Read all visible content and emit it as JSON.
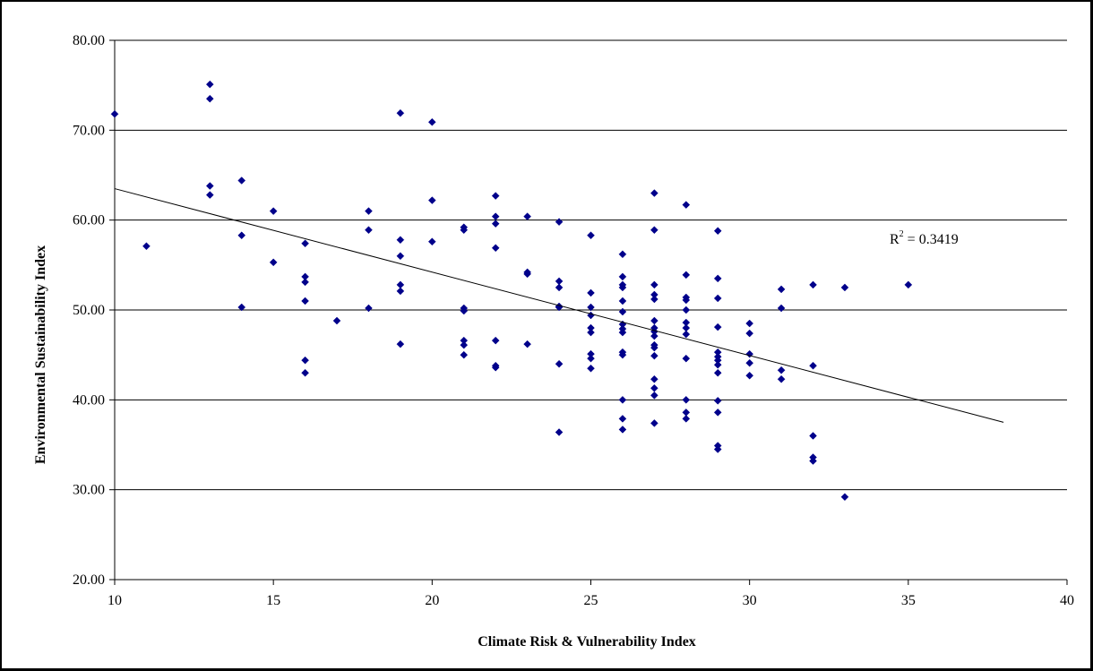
{
  "chart_data": {
    "type": "scatter",
    "xlabel": "Climate Risk & Vulnerability Index",
    "ylabel": "Environmental Sustainability Index",
    "xlim": [
      10,
      40
    ],
    "ylim": [
      20,
      80
    ],
    "x_ticks": [
      "10",
      "15",
      "20",
      "25",
      "30",
      "35",
      "40"
    ],
    "y_ticks": [
      "20.00",
      "30.00",
      "40.00",
      "50.00",
      "60.00",
      "70.00",
      "80.00"
    ],
    "gridlines": "horizontal",
    "marker_color": "#00008B",
    "trendline": {
      "type": "linear",
      "x_range": [
        10,
        38
      ],
      "y_start": 63.5,
      "y_end": 37.5,
      "label": "R",
      "label_exp": "2",
      "label_value": " = 0.3419"
    },
    "points": [
      [
        10,
        71.8
      ],
      [
        11,
        57.1
      ],
      [
        13,
        75.1
      ],
      [
        13,
        73.5
      ],
      [
        13,
        63.8
      ],
      [
        13,
        62.8
      ],
      [
        14,
        64.4
      ],
      [
        14,
        58.3
      ],
      [
        14,
        50.3
      ],
      [
        15,
        61.0
      ],
      [
        15,
        55.3
      ],
      [
        16,
        57.4
      ],
      [
        16,
        53.7
      ],
      [
        16,
        53.1
      ],
      [
        16,
        51.0
      ],
      [
        16,
        44.4
      ],
      [
        16,
        43.0
      ],
      [
        17,
        48.8
      ],
      [
        18,
        61.0
      ],
      [
        18,
        58.9
      ],
      [
        18,
        50.2
      ],
      [
        19,
        71.9
      ],
      [
        19,
        57.8
      ],
      [
        19,
        56.0
      ],
      [
        19,
        52.8
      ],
      [
        19,
        52.1
      ],
      [
        19,
        46.2
      ],
      [
        20,
        70.9
      ],
      [
        20,
        62.2
      ],
      [
        20,
        57.6
      ],
      [
        21,
        59.2
      ],
      [
        21,
        58.9
      ],
      [
        21,
        50.2
      ],
      [
        21,
        49.9
      ],
      [
        21,
        46.6
      ],
      [
        21,
        46.1
      ],
      [
        21,
        45.0
      ],
      [
        22,
        62.7
      ],
      [
        22,
        60.4
      ],
      [
        22,
        59.6
      ],
      [
        22,
        56.9
      ],
      [
        22,
        46.6
      ],
      [
        22,
        43.8
      ],
      [
        22,
        43.6
      ],
      [
        23,
        60.4
      ],
      [
        23,
        54.2
      ],
      [
        23,
        54.0
      ],
      [
        23,
        46.2
      ],
      [
        24,
        59.8
      ],
      [
        24,
        53.2
      ],
      [
        24,
        52.5
      ],
      [
        24,
        50.4
      ],
      [
        24,
        50.3
      ],
      [
        24,
        44.0
      ],
      [
        24,
        36.4
      ],
      [
        25,
        58.3
      ],
      [
        25,
        51.9
      ],
      [
        25,
        50.3
      ],
      [
        25,
        49.4
      ],
      [
        25,
        48.0
      ],
      [
        25,
        47.5
      ],
      [
        25,
        45.1
      ],
      [
        25,
        44.6
      ],
      [
        25,
        43.5
      ],
      [
        26,
        56.2
      ],
      [
        26,
        53.7
      ],
      [
        26,
        52.8
      ],
      [
        26,
        52.5
      ],
      [
        26,
        51.0
      ],
      [
        26,
        49.8
      ],
      [
        26,
        48.4
      ],
      [
        26,
        47.9
      ],
      [
        26,
        47.5
      ],
      [
        26,
        45.3
      ],
      [
        26,
        45.0
      ],
      [
        26,
        40.0
      ],
      [
        26,
        37.9
      ],
      [
        26,
        36.7
      ],
      [
        27,
        63.0
      ],
      [
        27,
        58.9
      ],
      [
        27,
        52.8
      ],
      [
        27,
        51.7
      ],
      [
        27,
        51.2
      ],
      [
        27,
        48.8
      ],
      [
        27,
        48.0
      ],
      [
        27,
        47.6
      ],
      [
        27,
        47.1
      ],
      [
        27,
        46.1
      ],
      [
        27,
        45.8
      ],
      [
        27,
        44.9
      ],
      [
        27,
        42.3
      ],
      [
        27,
        41.3
      ],
      [
        27,
        40.5
      ],
      [
        27,
        37.4
      ],
      [
        28,
        61.7
      ],
      [
        28,
        53.9
      ],
      [
        28,
        51.4
      ],
      [
        28,
        51.1
      ],
      [
        28,
        50.0
      ],
      [
        28,
        48.6
      ],
      [
        28,
        48.0
      ],
      [
        28,
        47.3
      ],
      [
        28,
        44.6
      ],
      [
        28,
        40.0
      ],
      [
        28,
        38.6
      ],
      [
        28,
        37.9
      ],
      [
        29,
        58.8
      ],
      [
        29,
        53.5
      ],
      [
        29,
        51.3
      ],
      [
        29,
        48.1
      ],
      [
        29,
        45.3
      ],
      [
        29,
        44.8
      ],
      [
        29,
        44.4
      ],
      [
        29,
        43.9
      ],
      [
        29,
        43.0
      ],
      [
        29,
        39.9
      ],
      [
        29,
        38.6
      ],
      [
        29,
        34.9
      ],
      [
        29,
        34.5
      ],
      [
        30,
        48.5
      ],
      [
        30,
        47.4
      ],
      [
        30,
        45.1
      ],
      [
        30,
        44.1
      ],
      [
        30,
        42.7
      ],
      [
        31,
        52.3
      ],
      [
        31,
        50.2
      ],
      [
        31,
        43.3
      ],
      [
        31,
        42.3
      ],
      [
        32,
        52.8
      ],
      [
        32,
        43.8
      ],
      [
        32,
        36.0
      ],
      [
        32,
        33.6
      ],
      [
        32,
        33.2
      ],
      [
        33,
        52.5
      ],
      [
        33,
        29.2
      ],
      [
        35,
        52.8
      ]
    ]
  }
}
